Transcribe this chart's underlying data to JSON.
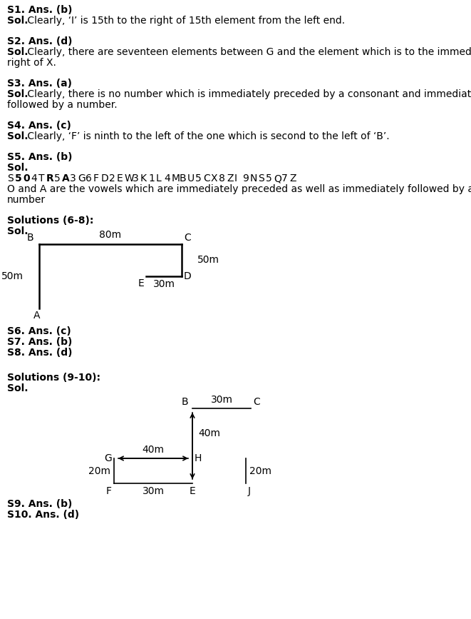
{
  "bg_color": "#ffffff",
  "s1_label": "S1. Ans. (b)",
  "s1_sol": "Sol. Clearly, ‘I’ is 15th to the right of 15th element from the left end.",
  "s2_label": "S2. Ans. (d)",
  "s2_sol_line1": "Sol. Clearly, there are seventeen elements between G and the element which is to the immediate",
  "s2_sol_line2": "right of X.",
  "s3_label": "S3. Ans. (a)",
  "s3_sol_line1": "Sol. Clearly, there is no number which is immediately preceded by a consonant and immediately",
  "s3_sol_line2": "followed by a number.",
  "s4_label": "S4. Ans. (c)",
  "s4_sol": "Sol. Clearly, ‘F’ is ninth to the left of the one which is second to the left of ‘B’.",
  "s5_label": "S5. Ans. (b)",
  "s5_sol": "Sol.",
  "s5_seq": [
    "S",
    "5",
    "0",
    "4",
    "T",
    "R",
    "5",
    "A",
    "3",
    "G",
    "6",
    "F",
    "D",
    "2",
    "E",
    "W",
    "3",
    "K",
    "1",
    "L",
    "4",
    "M",
    "B",
    "U",
    "5",
    "C",
    "X",
    "8",
    "Z",
    "I",
    "9",
    "N",
    "S",
    "5",
    "Q",
    "7",
    "Z"
  ],
  "s5_bold": [
    1,
    2,
    5,
    7
  ],
  "s5_text_line1": "O and A are the vowels which are immediately preceded as well as immediately followed by a",
  "s5_text_line2": "number",
  "s678_header": "Solutions (6-8):",
  "s678_sol": "Sol.",
  "s6": "S6. Ans. (c)",
  "s7": "S7. Ans. (b)",
  "s8": "S8. Ans. (d)",
  "s910_header": "Solutions (9-10):",
  "s910_sol": "Sol.",
  "s9": "S9. Ans. (b)",
  "s10": "S10. Ans. (d)"
}
